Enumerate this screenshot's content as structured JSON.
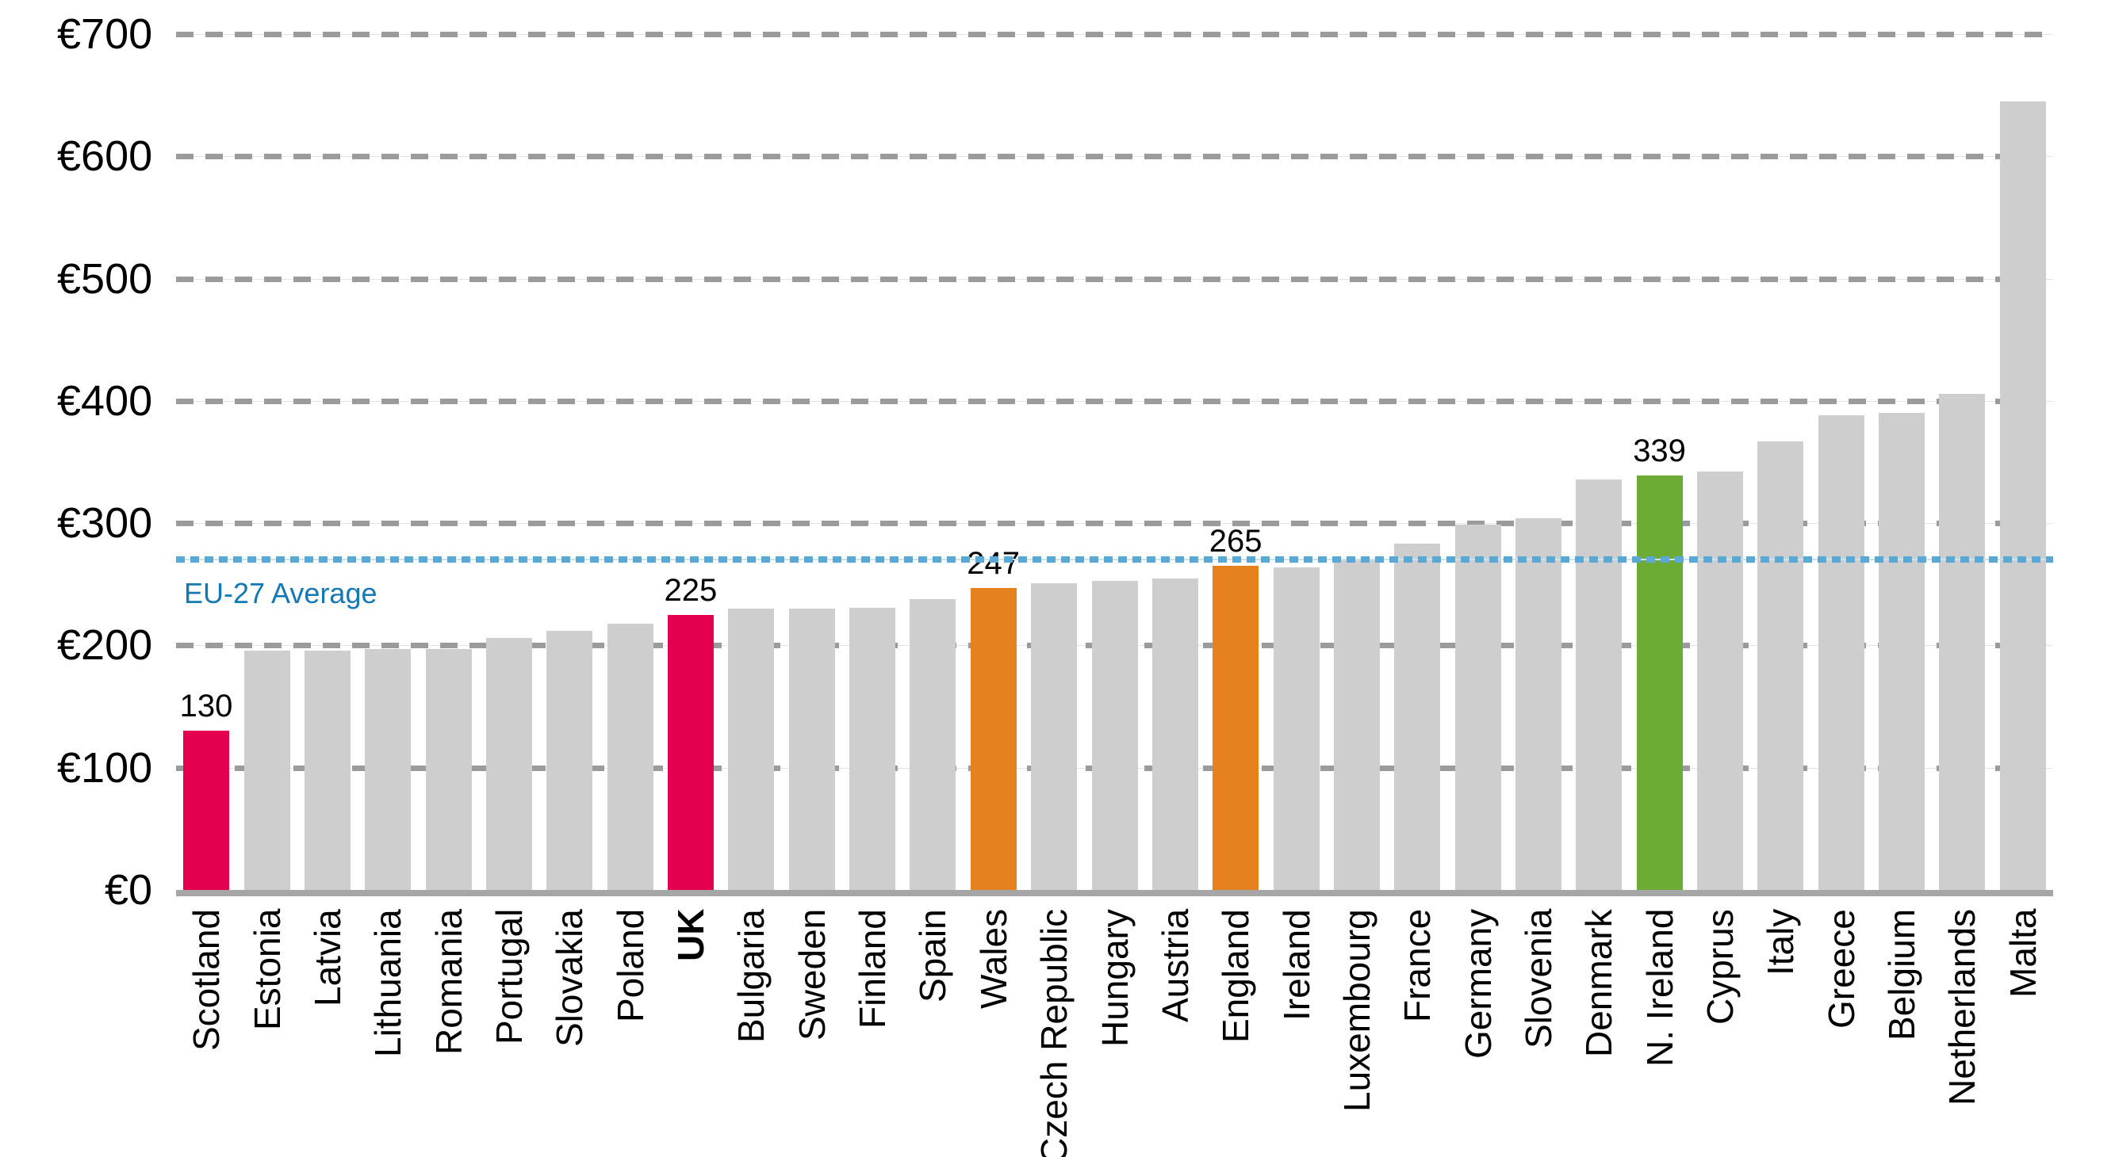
{
  "chart_data": {
    "type": "bar",
    "title": "",
    "currency": "EUR",
    "y_axis": {
      "min": 0,
      "max": 700,
      "grid": "dashed-horizontal",
      "ticks": [
        {
          "label": "€700",
          "value": 700
        },
        {
          "label": "€600",
          "value": 600
        },
        {
          "label": "€500",
          "value": 500
        },
        {
          "label": "€400",
          "value": 400
        },
        {
          "label": "€300",
          "value": 300
        },
        {
          "label": "€200",
          "value": 200
        },
        {
          "label": "€100",
          "value": 100
        },
        {
          "label": "€0",
          "value": 0
        }
      ]
    },
    "bars": [
      {
        "category": "Scotland",
        "value": 130,
        "group": "pink",
        "value_label": "130",
        "bold": false
      },
      {
        "category": "Estonia",
        "value": 196,
        "group": "default",
        "value_label": null,
        "bold": false
      },
      {
        "category": "Latvia",
        "value": 196,
        "group": "default",
        "value_label": null,
        "bold": false
      },
      {
        "category": "Lithuania",
        "value": 197,
        "group": "default",
        "value_label": null,
        "bold": false
      },
      {
        "category": "Romania",
        "value": 197,
        "group": "default",
        "value_label": null,
        "bold": false
      },
      {
        "category": "Portugal",
        "value": 206,
        "group": "default",
        "value_label": null,
        "bold": false
      },
      {
        "category": "Slovakia",
        "value": 212,
        "group": "default",
        "value_label": null,
        "bold": false
      },
      {
        "category": "Poland",
        "value": 218,
        "group": "default",
        "value_label": null,
        "bold": false
      },
      {
        "category": "UK",
        "value": 225,
        "group": "pink",
        "value_label": "225",
        "bold": true
      },
      {
        "category": "Bulgaria",
        "value": 230,
        "group": "default",
        "value_label": null,
        "bold": false
      },
      {
        "category": "Sweden",
        "value": 230,
        "group": "default",
        "value_label": null,
        "bold": false
      },
      {
        "category": "Finland",
        "value": 231,
        "group": "default",
        "value_label": null,
        "bold": false
      },
      {
        "category": "Spain",
        "value": 238,
        "group": "default",
        "value_label": null,
        "bold": false
      },
      {
        "category": "Wales",
        "value": 247,
        "group": "orange",
        "value_label": "247",
        "bold": false
      },
      {
        "category": "Czech Republic",
        "value": 251,
        "group": "default",
        "value_label": null,
        "bold": false
      },
      {
        "category": "Hungary",
        "value": 253,
        "group": "default",
        "value_label": null,
        "bold": false
      },
      {
        "category": "Austria",
        "value": 255,
        "group": "default",
        "value_label": null,
        "bold": false
      },
      {
        "category": "England",
        "value": 265,
        "group": "orange",
        "value_label": "265",
        "bold": false
      },
      {
        "category": "Ireland",
        "value": 264,
        "group": "default",
        "value_label": null,
        "bold": false
      },
      {
        "category": "Luxembourg",
        "value": 270,
        "group": "default",
        "value_label": null,
        "bold": false
      },
      {
        "category": "France",
        "value": 283,
        "group": "default",
        "value_label": null,
        "bold": false
      },
      {
        "category": "Germany",
        "value": 299,
        "group": "default",
        "value_label": null,
        "bold": false
      },
      {
        "category": "Slovenia",
        "value": 304,
        "group": "default",
        "value_label": null,
        "bold": false
      },
      {
        "category": "Denmark",
        "value": 336,
        "group": "default",
        "value_label": null,
        "bold": false
      },
      {
        "category": "N. Ireland",
        "value": 339,
        "group": "green",
        "value_label": "339",
        "bold": false
      },
      {
        "category": "Cyprus",
        "value": 342,
        "group": "default",
        "value_label": null,
        "bold": false
      },
      {
        "category": "Italy",
        "value": 367,
        "group": "default",
        "value_label": null,
        "bold": false
      },
      {
        "category": "Greece",
        "value": 388,
        "group": "default",
        "value_label": null,
        "bold": false
      },
      {
        "category": "Belgium",
        "value": 390,
        "group": "default",
        "value_label": null,
        "bold": false
      },
      {
        "category": "Netherlands",
        "value": 406,
        "group": "default",
        "value_label": null,
        "bold": false
      },
      {
        "category": "Malta",
        "value": 645,
        "group": "default",
        "value_label": null,
        "bold": false
      }
    ],
    "average_line": {
      "label": "EU-27 Average",
      "value": 270
    },
    "legend": null,
    "colors": {
      "default": "#cecece",
      "pink": "#e5004f",
      "orange": "#e5811e",
      "green": "#6cac34",
      "baseline": "#a6a6a6",
      "gridline_dash": "#9b9b9b",
      "average_line_dot": "#5ba8d4",
      "average_line_gap": "#c8e3f3",
      "average_label_text": "#1478b3",
      "text": "#000000"
    }
  }
}
